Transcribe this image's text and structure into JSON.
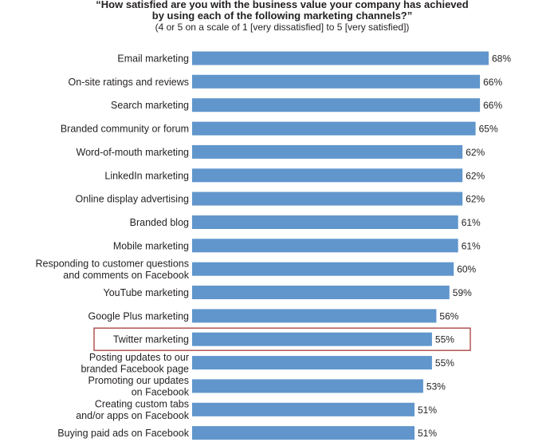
{
  "chart_data": {
    "type": "bar",
    "orientation": "horizontal",
    "title_lines": [
      "“How satisfied are you with the business value your company has achieved",
      "by using each of the following marketing channels?”"
    ],
    "subtitle": "(4 or 5 on a scale of 1 [very dissatisfied] to 5 [very satisfied])",
    "categories": [
      [
        "Email marketing"
      ],
      [
        "On-site ratings and reviews"
      ],
      [
        "Search marketing"
      ],
      [
        "Branded community or forum"
      ],
      [
        "Word-of-mouth marketing"
      ],
      [
        "LinkedIn marketing"
      ],
      [
        "Online display advertising"
      ],
      [
        "Branded blog"
      ],
      [
        "Mobile marketing"
      ],
      [
        "Responding to customer questions",
        "and comments on Facebook"
      ],
      [
        "YouTube marketing"
      ],
      [
        "Google Plus marketing"
      ],
      [
        "Twitter marketing"
      ],
      [
        "Posting updates to our",
        "branded Facebook page"
      ],
      [
        "Promoting our updates",
        "on Facebook"
      ],
      [
        "Creating custom tabs",
        "and/or apps on Facebook"
      ],
      [
        "Buying paid ads on Facebook"
      ]
    ],
    "values": [
      68,
      66,
      66,
      65,
      62,
      62,
      62,
      61,
      61,
      60,
      59,
      56,
      55,
      55,
      53,
      51,
      51
    ],
    "value_labels": [
      "68%",
      "66%",
      "66%",
      "65%",
      "62%",
      "62%",
      "62%",
      "61%",
      "61%",
      "60%",
      "59%",
      "56%",
      "55%",
      "55%",
      "53%",
      "51%",
      "51%"
    ],
    "xlim": [
      0,
      68
    ],
    "grid": false,
    "highlighted_category": "Twitter marketing",
    "bar_color": "#6096cc",
    "highlight_color": "#a83a3a"
  }
}
